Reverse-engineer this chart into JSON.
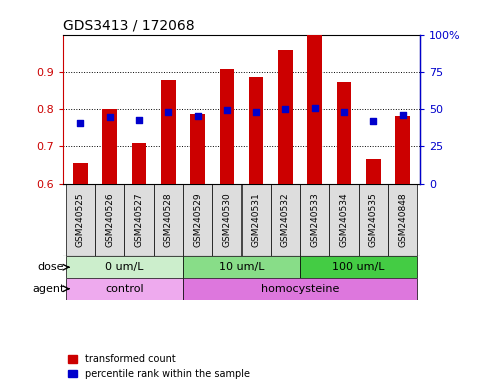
{
  "title": "GDS3413 / 172068",
  "samples": [
    "GSM240525",
    "GSM240526",
    "GSM240527",
    "GSM240528",
    "GSM240529",
    "GSM240530",
    "GSM240531",
    "GSM240532",
    "GSM240533",
    "GSM240534",
    "GSM240535",
    "GSM240848"
  ],
  "red_values": [
    0.655,
    0.8,
    0.71,
    0.878,
    0.787,
    0.908,
    0.887,
    0.958,
    1.0,
    0.872,
    0.665,
    0.782
  ],
  "blue_values": [
    0.762,
    0.778,
    0.77,
    0.793,
    0.782,
    0.798,
    0.792,
    0.8,
    0.802,
    0.792,
    0.768,
    0.783
  ],
  "red_color": "#CC0000",
  "blue_color": "#0000CC",
  "ylim_left": [
    0.6,
    1.0
  ],
  "ylim_right": [
    0,
    100
  ],
  "yticks_left": [
    0.6,
    0.7,
    0.8,
    0.9
  ],
  "ytick_labels_left": [
    "0.6",
    "0.7",
    "0.8",
    "0.9"
  ],
  "yticks_right": [
    0,
    25,
    50,
    75,
    100
  ],
  "ytick_labels_right": [
    "0",
    "25",
    "50",
    "75",
    "100%"
  ],
  "dose_groups": [
    {
      "label": "0 um/L",
      "start": 0,
      "end": 4,
      "color": "#CCEECC"
    },
    {
      "label": "10 um/L",
      "start": 4,
      "end": 8,
      "color": "#88DD88"
    },
    {
      "label": "100 um/L",
      "start": 8,
      "end": 12,
      "color": "#44CC44"
    }
  ],
  "agent_groups": [
    {
      "label": "control",
      "start": 0,
      "end": 4,
      "color": "#EEAAEE"
    },
    {
      "label": "homocysteine",
      "start": 4,
      "end": 12,
      "color": "#DD77DD"
    }
  ],
  "dose_label": "dose",
  "agent_label": "agent",
  "legend_red": "transformed count",
  "legend_blue": "percentile rank within the sample",
  "bar_width": 0.5,
  "background_color": "#FFFFFF",
  "plot_bg": "#FFFFFF",
  "axis_color": "#CC0000",
  "right_axis_color": "#0000CC",
  "sample_box_color": "#DDDDDD"
}
